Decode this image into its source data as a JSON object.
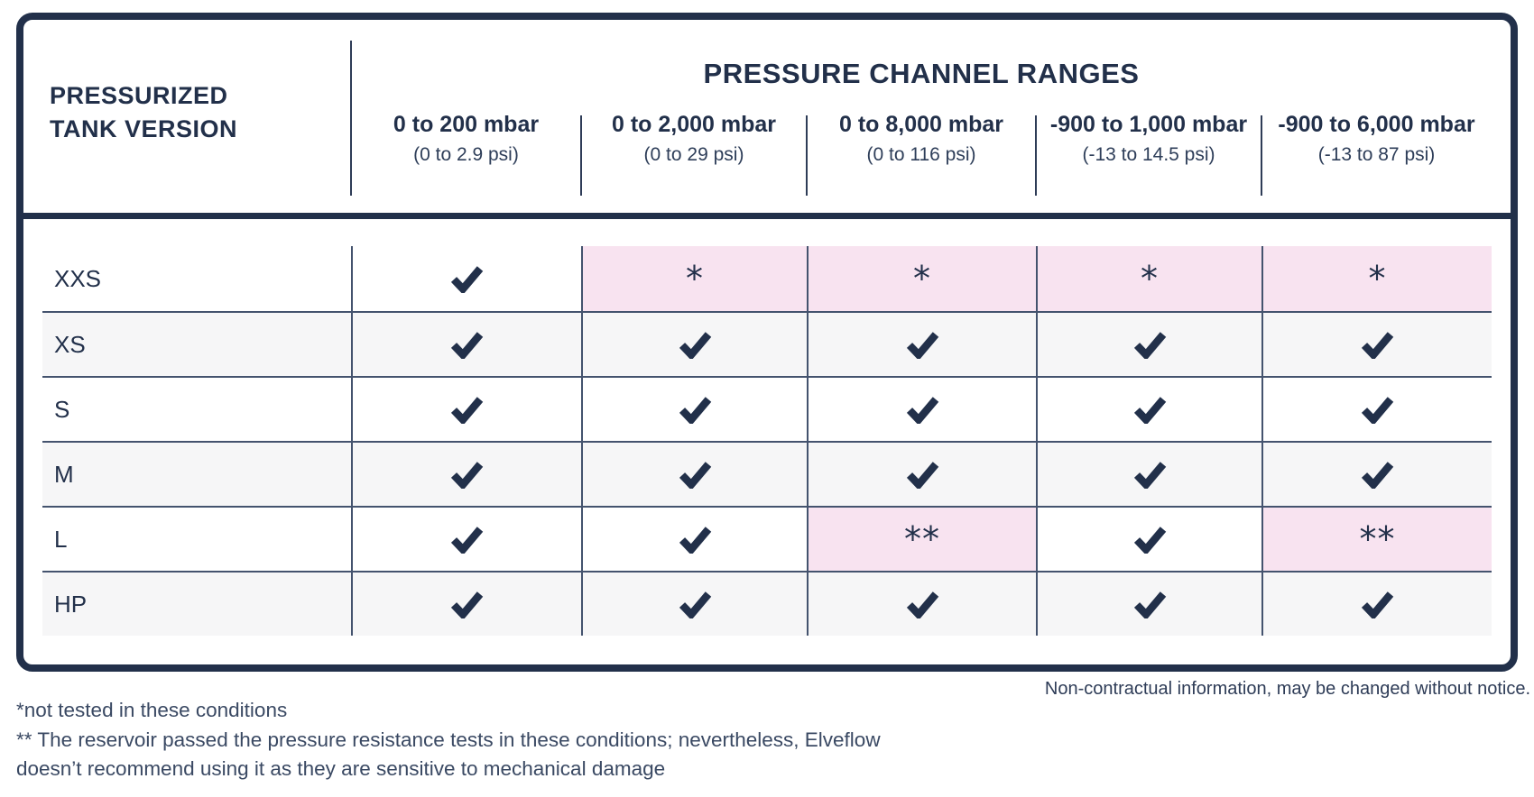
{
  "table": {
    "corner_title": {
      "line1": "PRESSURIZED",
      "line2": "TANK VERSION"
    },
    "group_title": "PRESSURE CHANNEL RANGES",
    "columns": [
      {
        "range": "0 to 200 mbar",
        "psi": "(0 to 2.9 psi)"
      },
      {
        "range": "0 to 2,000 mbar",
        "psi": "(0 to 29 psi)"
      },
      {
        "range": "0 to 8,000 mbar",
        "psi": "(0 to 116 psi)"
      },
      {
        "range": "-900 to 1,000 mbar",
        "psi": "(-13 to 14.5 psi)"
      },
      {
        "range": "-900 to 6,000 mbar",
        "psi": "(-13 to 87 psi)"
      }
    ],
    "symbols": {
      "check": "✔",
      "star": "*",
      "double_star": "**"
    },
    "rows": [
      {
        "label": "XXS",
        "cells": [
          "check",
          "star",
          "star",
          "star",
          "star"
        ]
      },
      {
        "label": "XS",
        "cells": [
          "check",
          "check",
          "check",
          "check",
          "check"
        ]
      },
      {
        "label": "S",
        "cells": [
          "check",
          "check",
          "check",
          "check",
          "check"
        ]
      },
      {
        "label": "M",
        "cells": [
          "check",
          "check",
          "check",
          "check",
          "check"
        ]
      },
      {
        "label": "L",
        "cells": [
          "check",
          "check",
          "double_star",
          "check",
          "double_star"
        ]
      },
      {
        "label": "HP",
        "cells": [
          "check",
          "check",
          "check",
          "check",
          "check"
        ]
      }
    ]
  },
  "notes": {
    "non_contractual": "Non-contractual information, may be changed without notice.",
    "footnote_star": "*not tested in these conditions",
    "footnote_double_star_lines": [
      "** The reservoir passed the pressure resistance tests in these conditions; nevertheless, Elveflow",
      "doesn’t recommend using it as they are sensitive to mechanical damage"
    ]
  },
  "colors": {
    "navy": "#22304a",
    "grid_line": "#44536e",
    "highlight_pink": "#f8e3f0",
    "row_alt_gray": "#f6f6f7",
    "footnote_text": "#3a4963"
  }
}
